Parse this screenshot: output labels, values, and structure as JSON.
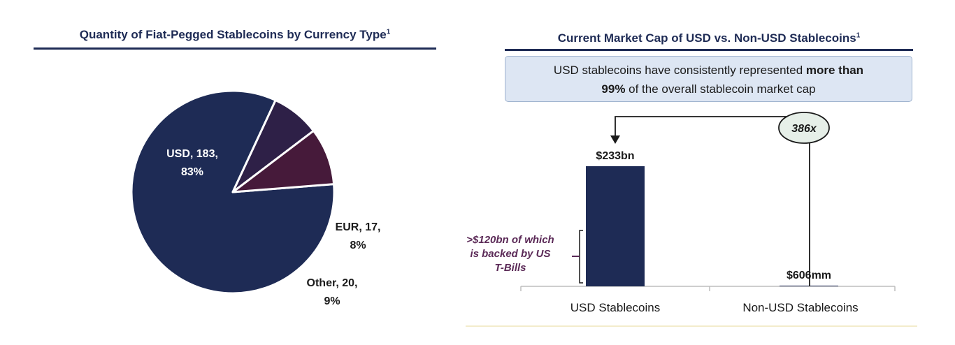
{
  "left_panel": {
    "title": "Quantity of Fiat-Pegged Stablecoins by Currency Type",
    "footnote": "1"
  },
  "right_panel": {
    "title": "Current Market Cap of USD vs. Non-USD Stablecoins",
    "footnote": "1",
    "callout": {
      "text_before": "USD stablecoins have consistently represented ",
      "bold1": "more than",
      "bold2": "99%",
      "text_after": " of the overall stablecoin market cap"
    },
    "multiplier_label": "386x",
    "annotation": [
      ">$120bn of which",
      "is backed by US",
      "T-Bills"
    ]
  },
  "chart_data": [
    {
      "type": "pie",
      "title": "Quantity of Fiat-Pegged Stablecoins by Currency Type",
      "slices": [
        {
          "label": "USD",
          "value": 183,
          "percent": "83%",
          "label_lines": [
            "USD, 183,",
            "83%"
          ],
          "color": "#1e2b55",
          "label_color": "#ffffff"
        },
        {
          "label": "EUR",
          "value": 17,
          "percent": "8%",
          "label_lines": [
            "EUR, 17,",
            "8%"
          ],
          "color": "#2e2047",
          "label_color": "#1a1a1a"
        },
        {
          "label": "Other",
          "value": 20,
          "percent": "9%",
          "label_lines": [
            "Other, 20,",
            "9%"
          ],
          "color": "#461a3a",
          "label_color": "#1a1a1a"
        }
      ]
    },
    {
      "type": "bar",
      "title": "Current Market Cap of USD vs. Non-USD Stablecoins",
      "categories": [
        "USD Stablecoins",
        "Non-USD Stablecoins"
      ],
      "values": [
        233000,
        606
      ],
      "unit": "$mm",
      "value_labels": [
        "$233bn",
        "$606mm"
      ],
      "ylim": [
        0,
        233000
      ],
      "bar_color": "#1e2b55"
    }
  ]
}
